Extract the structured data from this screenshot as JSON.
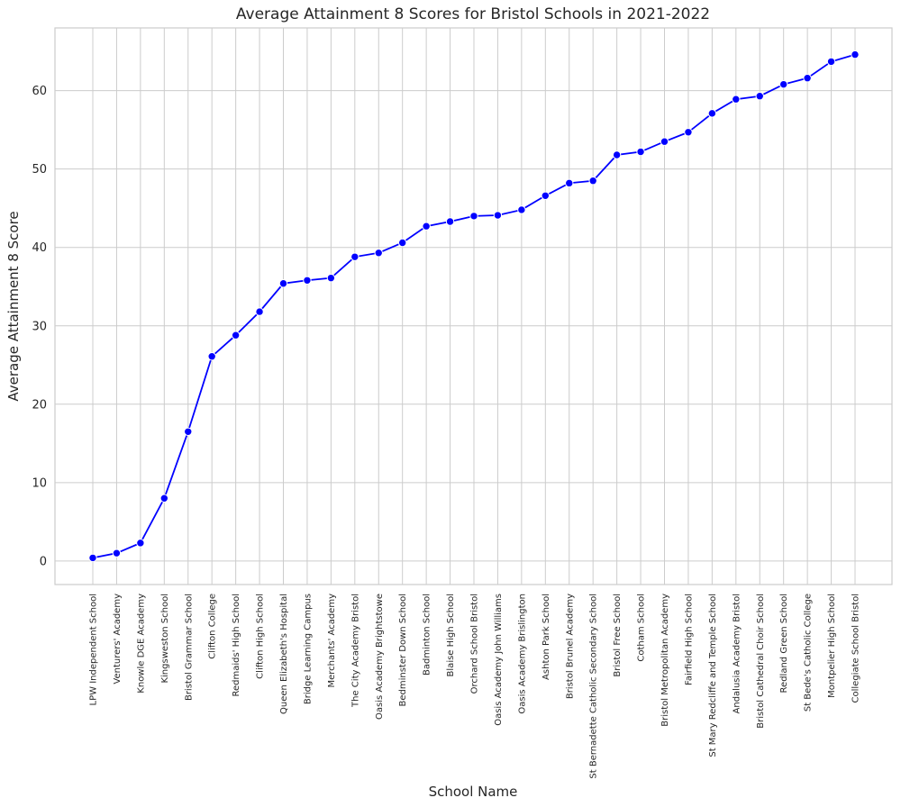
{
  "chart_data": {
    "type": "line",
    "title": "Average Attainment 8 Scores for Bristol Schools in 2021-2022",
    "xlabel": "School Name",
    "ylabel": "Average Attainment 8 Score",
    "ylim": [
      -3,
      68
    ],
    "yticks": [
      0,
      10,
      20,
      30,
      40,
      50,
      60
    ],
    "grid": true,
    "line_color": "#0000ff",
    "categories": [
      "LPW Independent School",
      "Venturers' Academy",
      "Knowle DGE Academy",
      "Kingsweston School",
      "Bristol Grammar School",
      "Clifton College",
      "Redmaids' High School",
      "Clifton High School",
      "Queen Elizabeth's Hospital",
      "Bridge Learning Campus",
      "Merchants' Academy",
      "The City Academy Bristol",
      "Oasis Academy Brightstowe",
      "Bedminster Down School",
      "Badminton School",
      "Blaise High School",
      "Orchard School Bristol",
      "Oasis Academy John Williams",
      "Oasis Academy Brislington",
      "Ashton Park School",
      "Bristol Brunel Academy",
      "St Bernadette Catholic Secondary School",
      "Bristol Free School",
      "Cotham School",
      "Bristol Metropolitan Academy",
      "Fairfield High School",
      "St Mary Redcliffe and Temple School",
      "Andalusia Academy Bristol",
      "Bristol Cathedral Choir School",
      "Redland Green School",
      "St Bede's Catholic College",
      "Montpelier High School",
      "Collegiate School Bristol"
    ],
    "values": [
      0.4,
      1.0,
      2.3,
      8.0,
      16.5,
      26.1,
      28.8,
      31.8,
      35.4,
      35.8,
      36.1,
      38.8,
      39.3,
      40.6,
      42.7,
      43.3,
      44.0,
      44.1,
      44.8,
      46.6,
      48.2,
      48.5,
      51.8,
      52.2,
      53.5,
      54.7,
      57.1,
      58.9,
      59.3,
      60.8,
      61.6,
      63.7,
      64.6
    ]
  }
}
